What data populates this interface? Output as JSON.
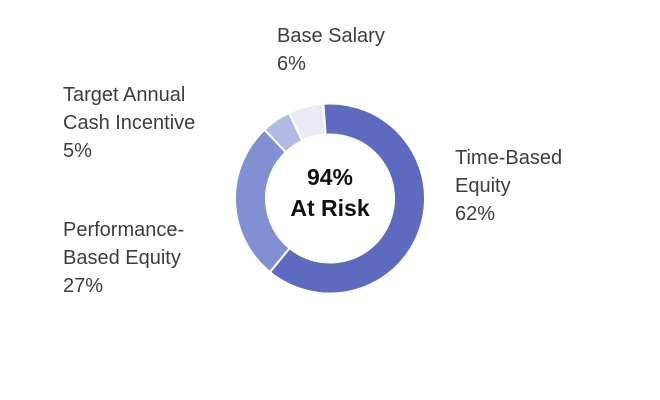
{
  "chart_data": {
    "type": "pie",
    "subtype": "donut",
    "title": "",
    "start_angle_deg": -4,
    "direction": "clockwise",
    "slices": [
      {
        "label": "Time-Based Equity",
        "value": 62,
        "color": "#5c6bc0"
      },
      {
        "label": "Performance-Based Equity",
        "value": 27,
        "color": "#8090d2"
      },
      {
        "label": "Target Annual Cash Incentive",
        "value": 5,
        "color": "#b1b9e5"
      },
      {
        "label": "Base Salary",
        "value": 6,
        "color": "#e8eaf6"
      }
    ],
    "separator_color": "#ffffff",
    "center_label": {
      "line1": "94%",
      "line2": "At Risk"
    },
    "legend_position": "labels-around-slices",
    "background": "#ffffff"
  },
  "labels": {
    "base_salary": {
      "lines": [
        "Base Salary",
        "6%"
      ]
    },
    "target_annual": {
      "lines": [
        "Target Annual",
        "Cash Incentive",
        "5%"
      ]
    },
    "performance": {
      "lines": [
        "Performance-",
        "Based Equity",
        "27%"
      ]
    },
    "time_based": {
      "lines": [
        "Time-Based",
        "Equity",
        "62%"
      ]
    }
  },
  "colors": {
    "label_text": "#3d3d3d",
    "center_text": "#111111"
  }
}
